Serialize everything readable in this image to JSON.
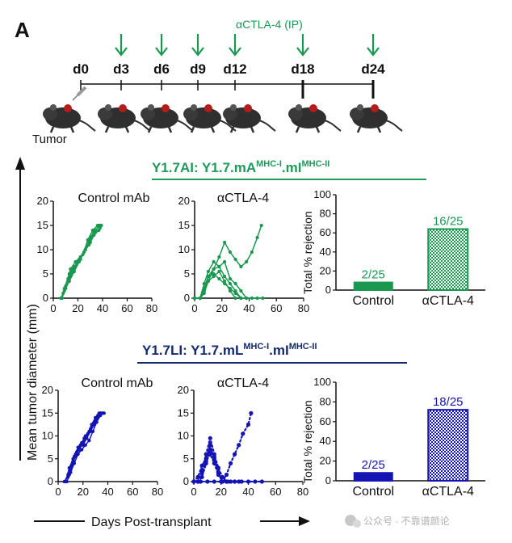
{
  "panel_label": "A",
  "colors": {
    "green": "#1a9850",
    "green_title": "#1f9a5a",
    "blue": "#1414b4",
    "blue_title": "#142a6e",
    "axis": "#111111"
  },
  "timeline": {
    "treatment_label": "αCTLA-4 (IP)",
    "tumor_label": "Tumor",
    "days": [
      "d0",
      "d3",
      "d6",
      "d9",
      "d12",
      "d18",
      "d24"
    ],
    "arrow_days": [
      "d3",
      "d6",
      "d9",
      "d12",
      "d18",
      "d24"
    ]
  },
  "left_axis_label": "Mean tumor diameter (mm)",
  "bottom_axis_label": "Days Post-transplant",
  "watermark": "公众号 · 不靠谱颜论",
  "sections": [
    {
      "id": "AI",
      "title_main": "Y1.7AI: Y1.7.mA",
      "title_sup1": "MHC-I",
      "title_mid": ".mI",
      "title_sup2": "MHC-II",
      "color_key": "green"
    },
    {
      "id": "LI",
      "title_main": "Y1.7LI: Y1.7.mL",
      "title_sup1": "MHC-I",
      "title_mid": ".mI",
      "title_sup2": "MHC-II",
      "color_key": "blue"
    }
  ],
  "chart_data": [
    {
      "type": "line",
      "panel": "Y1.7AI",
      "title": "Control mAb",
      "color": "#1a9850",
      "xlim": [
        0,
        80
      ],
      "ylim": [
        0,
        20
      ],
      "xticks": [
        0,
        20,
        40,
        60,
        80
      ],
      "yticks": [
        0,
        5,
        10,
        15,
        20
      ],
      "series": [
        {
          "x": [
            7,
            10,
            14,
            18,
            22,
            26,
            30,
            34,
            38
          ],
          "y": [
            0,
            2,
            4.5,
            6.5,
            8,
            10,
            12.5,
            14,
            15
          ]
        },
        {
          "x": [
            6,
            9,
            13,
            17,
            21,
            25,
            29,
            33,
            37
          ],
          "y": [
            0,
            1.5,
            3.5,
            5.5,
            7.5,
            9.5,
            11.5,
            13.5,
            15
          ]
        },
        {
          "x": [
            8,
            12,
            16,
            20,
            24,
            28,
            32,
            36
          ],
          "y": [
            1,
            4,
            6,
            7.5,
            9,
            12,
            14,
            15
          ]
        },
        {
          "x": [
            9,
            13,
            17,
            21,
            25,
            29,
            33,
            37,
            39
          ],
          "y": [
            2,
            5,
            6.5,
            8,
            9.5,
            11,
            13,
            14,
            15
          ]
        },
        {
          "x": [
            10,
            14,
            18,
            22,
            26,
            30,
            34,
            38
          ],
          "y": [
            2.5,
            6,
            7.5,
            8.5,
            10,
            11.5,
            13.5,
            14.5
          ]
        }
      ]
    },
    {
      "type": "line",
      "panel": "Y1.7AI",
      "title": "αCTLA-4",
      "color": "#1a9850",
      "xlim": [
        0,
        80
      ],
      "ylim": [
        0,
        20
      ],
      "xticks": [
        0,
        20,
        40,
        60,
        80
      ],
      "yticks": [
        0,
        5,
        10,
        15,
        20
      ],
      "series": [
        {
          "x": [
            0,
            4,
            7,
            10,
            14,
            18,
            22,
            26,
            30,
            34,
            38,
            42,
            46,
            49
          ],
          "y": [
            0,
            0,
            1,
            3.5,
            6,
            8.5,
            11.5,
            9.5,
            8,
            6.5,
            7.5,
            9.5,
            12.5,
            15
          ]
        },
        {
          "x": [
            0,
            4,
            7,
            10,
            14,
            18,
            22,
            26,
            30,
            34,
            38,
            42,
            46,
            50
          ],
          "y": [
            0,
            0,
            2,
            4.5,
            6,
            6.5,
            7.5,
            4,
            3,
            1.5,
            0,
            0,
            0,
            0
          ]
        },
        {
          "x": [
            0,
            4,
            7,
            10,
            14,
            18,
            22,
            26,
            30,
            34,
            38
          ],
          "y": [
            0,
            0,
            3,
            5.5,
            7.5,
            6.5,
            4.5,
            3,
            1.5,
            0,
            0
          ]
        },
        {
          "x": [
            0,
            4,
            7,
            10,
            14,
            18,
            22,
            26,
            30,
            34
          ],
          "y": [
            0,
            0,
            1.5,
            4.5,
            5,
            4,
            3,
            2,
            1,
            0
          ]
        },
        {
          "x": [
            0,
            4,
            7,
            10,
            14,
            18,
            22,
            26,
            30
          ],
          "y": [
            0,
            0,
            2,
            3.5,
            4.5,
            5.5,
            3.5,
            1.5,
            0
          ]
        }
      ]
    },
    {
      "type": "bar",
      "panel": "Y1.7AI",
      "color": "#1a9850",
      "categories": [
        "Control",
        "αCTLA-4"
      ],
      "values": [
        8,
        64
      ],
      "labels": [
        "2/25",
        "16/25"
      ],
      "patterns": [
        "solid",
        "checker"
      ],
      "ylabel": "Total % rejection",
      "ylim": [
        0,
        100
      ],
      "yticks": [
        0,
        20,
        40,
        60,
        80,
        100
      ]
    },
    {
      "type": "line",
      "panel": "Y1.7LI",
      "title": "Control mAb",
      "color": "#1414b4",
      "xlim": [
        0,
        80
      ],
      "ylim": [
        0,
        20
      ],
      "xticks": [
        0,
        20,
        40,
        60,
        80
      ],
      "yticks": [
        0,
        5,
        10,
        15,
        20
      ],
      "series": [
        {
          "x": [
            5,
            8,
            11,
            14,
            17,
            20,
            23,
            26,
            29,
            32,
            34
          ],
          "y": [
            0,
            1.5,
            3.5,
            5.5,
            7,
            8.5,
            10,
            11.5,
            13,
            14.5,
            15
          ]
        },
        {
          "x": [
            6,
            9,
            12,
            15,
            18,
            21,
            24,
            27,
            30,
            33
          ],
          "y": [
            0,
            3,
            5,
            6.5,
            8,
            9.5,
            10.5,
            12.5,
            14,
            15
          ]
        },
        {
          "x": [
            7,
            10,
            13,
            16,
            19,
            22,
            25,
            28,
            31,
            34,
            36
          ],
          "y": [
            0,
            2,
            4,
            6,
            7,
            8,
            9,
            11,
            13,
            14.5,
            15
          ]
        },
        {
          "x": [
            8,
            11,
            14,
            17,
            20,
            23,
            26,
            29,
            32,
            35
          ],
          "y": [
            1,
            3.5,
            6,
            7.5,
            8,
            9.5,
            11,
            12.5,
            14,
            15
          ]
        },
        {
          "x": [
            9,
            12,
            15,
            18,
            21,
            24,
            27,
            30,
            33,
            36
          ],
          "y": [
            1.5,
            4.5,
            6.5,
            8,
            9,
            10.5,
            12,
            13.5,
            14.5,
            15
          ]
        },
        {
          "x": [
            10,
            13,
            16,
            19,
            22,
            25,
            28,
            31,
            34,
            37
          ],
          "y": [
            2.5,
            5.5,
            7.5,
            8.5,
            10,
            11,
            12.5,
            14,
            15,
            15
          ]
        }
      ]
    },
    {
      "type": "line",
      "panel": "Y1.7LI",
      "title": "αCTLA-4",
      "color": "#1414b4",
      "dotted": true,
      "xlim": [
        0,
        80
      ],
      "ylim": [
        0,
        20
      ],
      "xticks": [
        0,
        20,
        40,
        60,
        80
      ],
      "yticks": [
        0,
        5,
        10,
        15,
        20
      ],
      "series": [
        {
          "x": [
            0,
            3,
            6,
            9,
            12,
            15,
            18,
            21,
            24,
            27,
            30,
            33,
            36,
            40,
            42
          ],
          "y": [
            0,
            0,
            1,
            4,
            7,
            5.5,
            2,
            0,
            1.5,
            4,
            6,
            8,
            10.5,
            12.5,
            15
          ]
        },
        {
          "x": [
            0,
            3,
            6,
            9,
            12,
            15,
            18,
            21,
            24,
            27,
            30,
            33
          ],
          "y": [
            0,
            0,
            2.5,
            6,
            9.5,
            6,
            3,
            1,
            0,
            0,
            0,
            0
          ]
        },
        {
          "x": [
            0,
            3,
            6,
            9,
            12,
            15,
            18,
            21,
            24
          ],
          "y": [
            0,
            1,
            3.5,
            5,
            8,
            5,
            2,
            0,
            0
          ]
        },
        {
          "x": [
            0,
            3,
            6,
            9,
            12,
            15,
            18,
            21
          ],
          "y": [
            0,
            0,
            2,
            4.5,
            6,
            4,
            1.5,
            0
          ]
        },
        {
          "x": [
            0,
            5,
            10,
            15,
            20,
            25,
            30,
            35,
            40,
            45,
            50
          ],
          "y": [
            0,
            0,
            0,
            0,
            0,
            0,
            0,
            0,
            0,
            0,
            0
          ]
        }
      ]
    },
    {
      "type": "bar",
      "panel": "Y1.7LI",
      "color": "#1414b4",
      "categories": [
        "Control",
        "αCTLA-4"
      ],
      "values": [
        8,
        72
      ],
      "labels": [
        "2/25",
        "18/25"
      ],
      "patterns": [
        "solid",
        "checker"
      ],
      "ylabel": "Total % rejection",
      "ylim": [
        0,
        100
      ],
      "yticks": [
        0,
        20,
        40,
        60,
        80,
        100
      ]
    }
  ]
}
